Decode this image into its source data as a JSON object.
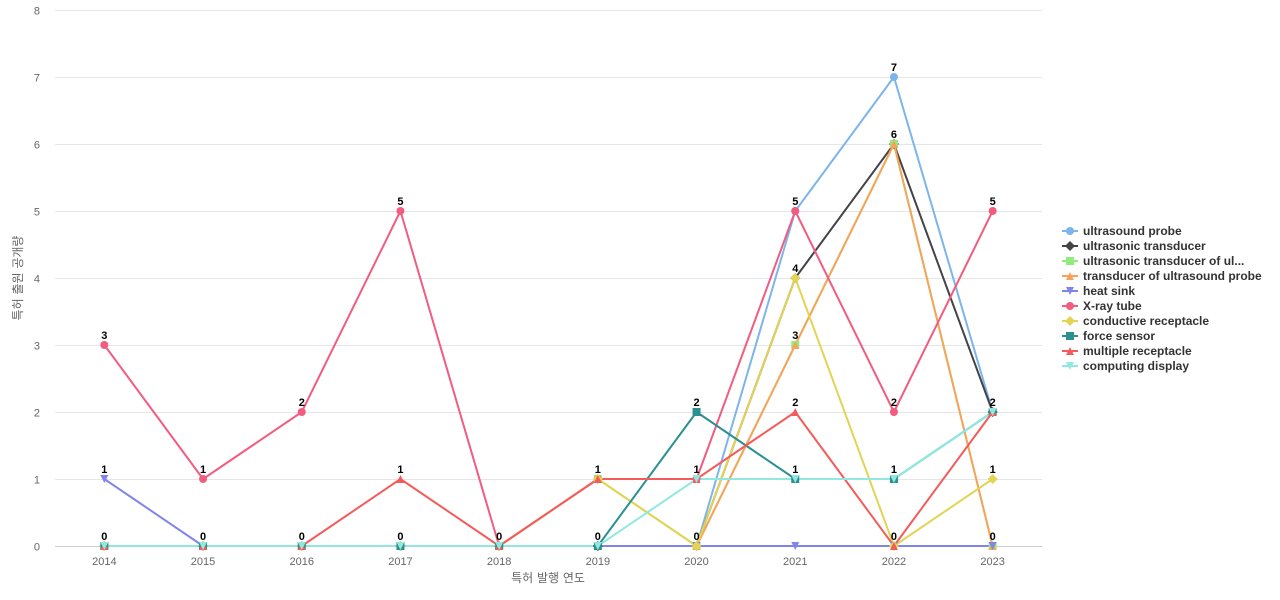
{
  "chart_data": {
    "type": "line",
    "title": "",
    "xlabel": "특허 발행 연도",
    "ylabel": "특허 출원 공개량",
    "ylim": [
      0,
      8
    ],
    "yticks": [
      0,
      1,
      2,
      3,
      4,
      5,
      6,
      7,
      8
    ],
    "grid": true,
    "legend_position": "right",
    "categories": [
      "2014",
      "2015",
      "2016",
      "2017",
      "2018",
      "2019",
      "2020",
      "2021",
      "2022",
      "2023"
    ],
    "series": [
      {
        "name": "ultrasound probe",
        "color": "#7cb5ec",
        "marker": "circle",
        "values": [
          0,
          0,
          0,
          0,
          0,
          0,
          0,
          5,
          7,
          2
        ]
      },
      {
        "name": "ultrasonic transducer",
        "color": "#434348",
        "marker": "diamond",
        "values": [
          0,
          0,
          0,
          0,
          0,
          0,
          0,
          4,
          6,
          2
        ]
      },
      {
        "name": "ultrasonic transducer of ul...",
        "color": "#90ed7d",
        "marker": "square",
        "values": [
          0,
          0,
          0,
          0,
          0,
          1,
          0,
          3,
          6,
          0
        ]
      },
      {
        "name": "transducer of ultrasound probe",
        "color": "#f7a35c",
        "marker": "triangle",
        "values": [
          0,
          0,
          0,
          0,
          0,
          0,
          0,
          3,
          6,
          0
        ]
      },
      {
        "name": "heat sink",
        "color": "#8085e9",
        "marker": "triangle-down",
        "values": [
          1,
          0,
          0,
          0,
          0,
          0,
          0,
          0,
          0,
          0
        ]
      },
      {
        "name": "X-ray tube",
        "color": "#f15c80",
        "marker": "circle",
        "values": [
          3,
          1,
          2,
          5,
          0,
          1,
          1,
          5,
          2,
          5
        ]
      },
      {
        "name": "conductive receptacle",
        "color": "#e4d354",
        "marker": "diamond",
        "values": [
          0,
          0,
          0,
          0,
          0,
          1,
          0,
          4,
          0,
          1
        ]
      },
      {
        "name": "force sensor",
        "color": "#2b908f",
        "marker": "square",
        "values": [
          0,
          0,
          0,
          0,
          0,
          0,
          2,
          1,
          1,
          2
        ]
      },
      {
        "name": "multiple receptacle",
        "color": "#f45b5b",
        "marker": "triangle",
        "values": [
          0,
          0,
          0,
          1,
          0,
          1,
          1,
          2,
          0,
          2
        ]
      },
      {
        "name": "computing display",
        "color": "#91e8e1",
        "marker": "triangle-down",
        "values": [
          0,
          0,
          0,
          0,
          0,
          0,
          1,
          1,
          1,
          2
        ]
      }
    ],
    "data_labels": [
      {
        "category": "2014",
        "values": [
          "3",
          "1",
          "0"
        ]
      },
      {
        "category": "2015",
        "values": [
          "1",
          "0"
        ]
      },
      {
        "category": "2016",
        "values": [
          "2",
          "0"
        ]
      },
      {
        "category": "2017",
        "values": [
          "5",
          "1",
          "0"
        ]
      },
      {
        "category": "2018",
        "values": [
          "0"
        ]
      },
      {
        "category": "2019",
        "values": [
          "1",
          "0"
        ]
      },
      {
        "category": "2020",
        "values": [
          "2",
          "1",
          "0"
        ]
      },
      {
        "category": "2021",
        "values": [
          "5",
          "4",
          "3",
          "2",
          "1"
        ]
      },
      {
        "category": "2022",
        "values": [
          "7",
          "6",
          "2",
          "1",
          "0"
        ]
      },
      {
        "category": "2023",
        "values": [
          "5",
          "2",
          "1",
          "0"
        ]
      }
    ]
  }
}
